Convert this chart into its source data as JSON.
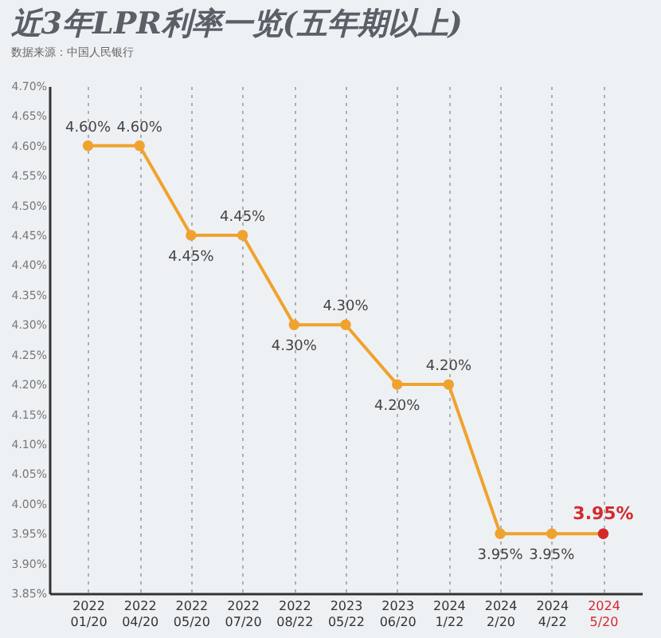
{
  "chart_data": {
    "type": "line",
    "title": "近3年LPR利率一览(五年期以上)",
    "annotations": [
      "数据来源：中国人民银行"
    ],
    "categories": [
      "2022\n01/20",
      "2022\n04/20",
      "2022\n05/20",
      "2022\n07/20",
      "2022\n08/22",
      "2023\n05/22",
      "2023\n06/20",
      "2024\n1/22",
      "2024\n2/20",
      "2024\n4/22",
      "2024\n5/20"
    ],
    "values": [
      4.6,
      4.6,
      4.45,
      4.45,
      4.3,
      4.3,
      4.2,
      4.2,
      3.95,
      3.95,
      3.95
    ],
    "value_labels": [
      "4.60%",
      "4.60%",
      "4.45%",
      "4.45%",
      "4.30%",
      "4.30%",
      "4.20%",
      "4.20%",
      "3.95%",
      "3.95%",
      "3.95%"
    ],
    "color": "#f0a22e",
    "colors": [
      "#f0a22e",
      "#f0a22e",
      "#f0a22e",
      "#f0a22e",
      "#f0a22e",
      "#f0a22e",
      "#f0a22e",
      "#f0a22e",
      "#f0a22e",
      "#f0a22e",
      "#d42a2e"
    ],
    "marker": "circle",
    "grid": "x",
    "ylim": [
      3.85,
      4.7
    ],
    "yticks": [
      {
        "value": 3.85,
        "label": "3.85%"
      },
      {
        "value": 3.9,
        "label": "3.90%"
      },
      {
        "value": 3.95,
        "label": "3.95%"
      },
      {
        "value": 4.0,
        "label": "4.00%"
      },
      {
        "value": 4.05,
        "label": "4.05%"
      },
      {
        "value": 4.1,
        "label": "4.10%"
      },
      {
        "value": 4.15,
        "label": "4.15%"
      },
      {
        "value": 4.2,
        "label": "4.20%"
      },
      {
        "value": 4.25,
        "label": "4.25%"
      },
      {
        "value": 4.3,
        "label": "4.30%"
      },
      {
        "value": 4.35,
        "label": "4.35%"
      },
      {
        "value": 4.4,
        "label": "4.40%"
      },
      {
        "value": 4.45,
        "label": "4.45%"
      },
      {
        "value": 4.5,
        "label": "4.50%"
      },
      {
        "value": 4.55,
        "label": "4.55%"
      },
      {
        "value": 4.6,
        "label": "4.60%"
      },
      {
        "value": 4.65,
        "label": "4.65%"
      },
      {
        "value": 4.7,
        "label": "4.70%"
      }
    ]
  }
}
